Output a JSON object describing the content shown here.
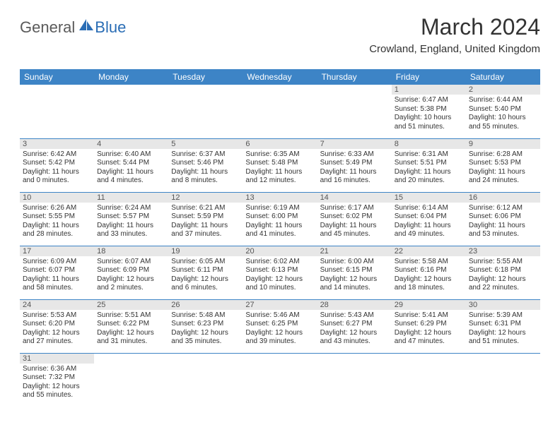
{
  "logo": {
    "text1": "General",
    "text2": "Blue"
  },
  "title": "March 2024",
  "location": "Crowland, England, United Kingdom",
  "colors": {
    "header_bg": "#3d84c6",
    "header_text": "#ffffff",
    "daynum_bg": "#e7e7e7",
    "cell_border": "#3d84c6",
    "logo_gray": "#5a5a5a",
    "logo_blue": "#2a6db5",
    "body_text": "#333333"
  },
  "day_headers": [
    "Sunday",
    "Monday",
    "Tuesday",
    "Wednesday",
    "Thursday",
    "Friday",
    "Saturday"
  ],
  "weeks": [
    [
      null,
      null,
      null,
      null,
      null,
      {
        "n": "1",
        "sunrise": "6:47 AM",
        "sunset": "5:38 PM",
        "daylight": "10 hours and 51 minutes."
      },
      {
        "n": "2",
        "sunrise": "6:44 AM",
        "sunset": "5:40 PM",
        "daylight": "10 hours and 55 minutes."
      }
    ],
    [
      {
        "n": "3",
        "sunrise": "6:42 AM",
        "sunset": "5:42 PM",
        "daylight": "11 hours and 0 minutes."
      },
      {
        "n": "4",
        "sunrise": "6:40 AM",
        "sunset": "5:44 PM",
        "daylight": "11 hours and 4 minutes."
      },
      {
        "n": "5",
        "sunrise": "6:37 AM",
        "sunset": "5:46 PM",
        "daylight": "11 hours and 8 minutes."
      },
      {
        "n": "6",
        "sunrise": "6:35 AM",
        "sunset": "5:48 PM",
        "daylight": "11 hours and 12 minutes."
      },
      {
        "n": "7",
        "sunrise": "6:33 AM",
        "sunset": "5:49 PM",
        "daylight": "11 hours and 16 minutes."
      },
      {
        "n": "8",
        "sunrise": "6:31 AM",
        "sunset": "5:51 PM",
        "daylight": "11 hours and 20 minutes."
      },
      {
        "n": "9",
        "sunrise": "6:28 AM",
        "sunset": "5:53 PM",
        "daylight": "11 hours and 24 minutes."
      }
    ],
    [
      {
        "n": "10",
        "sunrise": "6:26 AM",
        "sunset": "5:55 PM",
        "daylight": "11 hours and 28 minutes."
      },
      {
        "n": "11",
        "sunrise": "6:24 AM",
        "sunset": "5:57 PM",
        "daylight": "11 hours and 33 minutes."
      },
      {
        "n": "12",
        "sunrise": "6:21 AM",
        "sunset": "5:59 PM",
        "daylight": "11 hours and 37 minutes."
      },
      {
        "n": "13",
        "sunrise": "6:19 AM",
        "sunset": "6:00 PM",
        "daylight": "11 hours and 41 minutes."
      },
      {
        "n": "14",
        "sunrise": "6:17 AM",
        "sunset": "6:02 PM",
        "daylight": "11 hours and 45 minutes."
      },
      {
        "n": "15",
        "sunrise": "6:14 AM",
        "sunset": "6:04 PM",
        "daylight": "11 hours and 49 minutes."
      },
      {
        "n": "16",
        "sunrise": "6:12 AM",
        "sunset": "6:06 PM",
        "daylight": "11 hours and 53 minutes."
      }
    ],
    [
      {
        "n": "17",
        "sunrise": "6:09 AM",
        "sunset": "6:07 PM",
        "daylight": "11 hours and 58 minutes."
      },
      {
        "n": "18",
        "sunrise": "6:07 AM",
        "sunset": "6:09 PM",
        "daylight": "12 hours and 2 minutes."
      },
      {
        "n": "19",
        "sunrise": "6:05 AM",
        "sunset": "6:11 PM",
        "daylight": "12 hours and 6 minutes."
      },
      {
        "n": "20",
        "sunrise": "6:02 AM",
        "sunset": "6:13 PM",
        "daylight": "12 hours and 10 minutes."
      },
      {
        "n": "21",
        "sunrise": "6:00 AM",
        "sunset": "6:15 PM",
        "daylight": "12 hours and 14 minutes."
      },
      {
        "n": "22",
        "sunrise": "5:58 AM",
        "sunset": "6:16 PM",
        "daylight": "12 hours and 18 minutes."
      },
      {
        "n": "23",
        "sunrise": "5:55 AM",
        "sunset": "6:18 PM",
        "daylight": "12 hours and 22 minutes."
      }
    ],
    [
      {
        "n": "24",
        "sunrise": "5:53 AM",
        "sunset": "6:20 PM",
        "daylight": "12 hours and 27 minutes."
      },
      {
        "n": "25",
        "sunrise": "5:51 AM",
        "sunset": "6:22 PM",
        "daylight": "12 hours and 31 minutes."
      },
      {
        "n": "26",
        "sunrise": "5:48 AM",
        "sunset": "6:23 PM",
        "daylight": "12 hours and 35 minutes."
      },
      {
        "n": "27",
        "sunrise": "5:46 AM",
        "sunset": "6:25 PM",
        "daylight": "12 hours and 39 minutes."
      },
      {
        "n": "28",
        "sunrise": "5:43 AM",
        "sunset": "6:27 PM",
        "daylight": "12 hours and 43 minutes."
      },
      {
        "n": "29",
        "sunrise": "5:41 AM",
        "sunset": "6:29 PM",
        "daylight": "12 hours and 47 minutes."
      },
      {
        "n": "30",
        "sunrise": "5:39 AM",
        "sunset": "6:31 PM",
        "daylight": "12 hours and 51 minutes."
      }
    ],
    [
      {
        "n": "31",
        "sunrise": "6:36 AM",
        "sunset": "7:32 PM",
        "daylight": "12 hours and 55 minutes."
      },
      null,
      null,
      null,
      null,
      null,
      null
    ]
  ],
  "labels": {
    "sunrise": "Sunrise:",
    "sunset": "Sunset:",
    "daylight": "Daylight:"
  }
}
